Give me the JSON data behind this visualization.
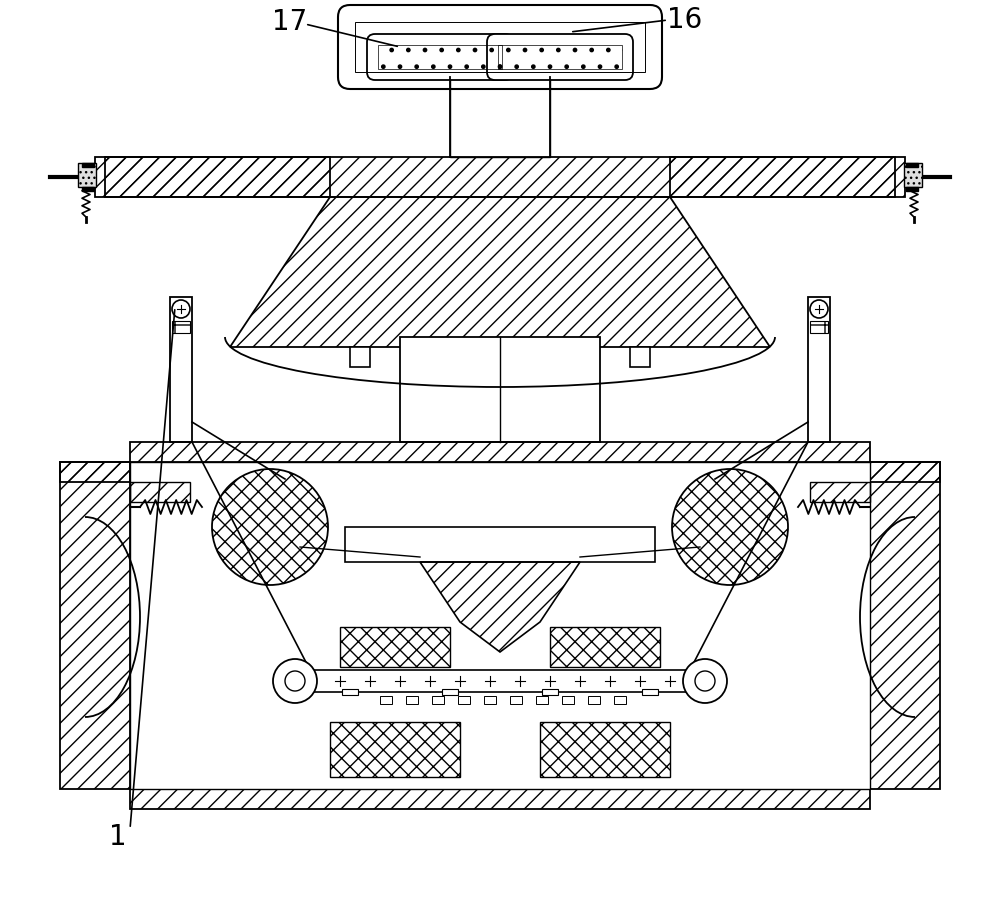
{
  "background_color": "#ffffff",
  "line_color": "#000000",
  "label_16": "16",
  "label_17": "17",
  "label_1": "1",
  "font_size_labels": 20
}
